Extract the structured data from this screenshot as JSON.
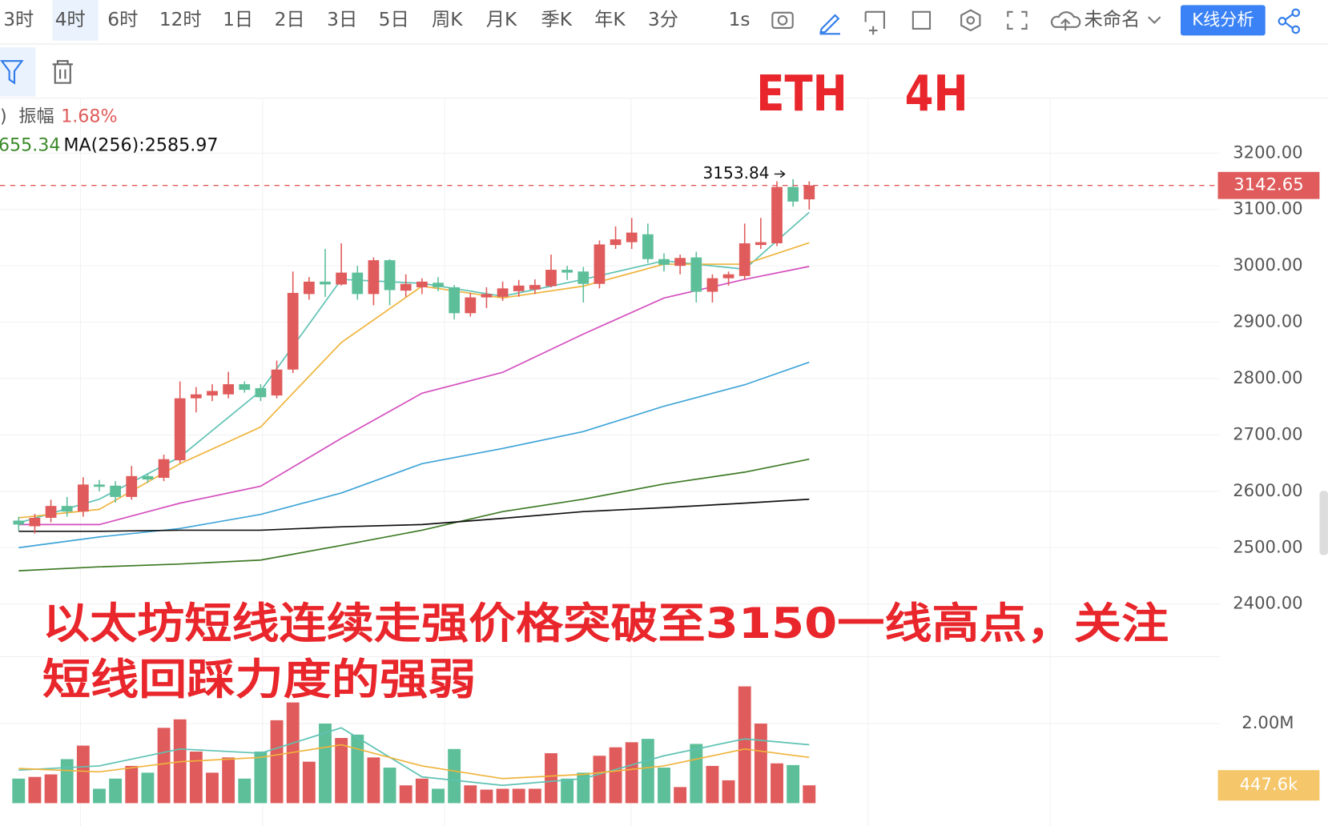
{
  "toolbar": {
    "periods": [
      "3时",
      "4时",
      "6时",
      "12时",
      "1日",
      "2日",
      "3日",
      "5日",
      "周K",
      "月K",
      "季K",
      "年K",
      "3分"
    ],
    "active": 1,
    "speed": "1s",
    "name": "未命名",
    "analysis": "K线分析"
  },
  "info": {
    "paren": ")",
    "amp_label": "振幅",
    "amp": "1.68%",
    "ma_cut": "655.34",
    "ma256": "MA(256):2585.97"
  },
  "overlay": {
    "title": "ETH    4H",
    "caption": [
      "以太坊短线连续走强价格突破至3150一线高点，关注",
      "短线回踩力度的强弱"
    ]
  },
  "chart_data": [
    {
      "type": "candlestick",
      "open": [
        2548,
        2538,
        2553,
        2574,
        2564,
        2612,
        2610,
        2590,
        2627,
        2624,
        2655,
        2765,
        2770,
        2772,
        2790,
        2783,
        2770,
        2816,
        2950,
        2972,
        2967,
        2988,
        2950,
        3010,
        2956,
        2962,
        2970,
        2962,
        2916,
        2944,
        2945,
        2955,
        2958,
        2964,
        2993,
        2990,
        2968,
        3037,
        3042,
        3056,
        3012,
        3000,
        3015,
        2954,
        2978,
        2982,
        3037,
        3040,
        3140,
        3118
      ],
      "high": [
        2555,
        2560,
        2585,
        2590,
        2625,
        2620,
        2618,
        2645,
        2632,
        2665,
        2795,
        2785,
        2790,
        2812,
        2795,
        2790,
        2832,
        2990,
        2980,
        3030,
        3040,
        3000,
        3015,
        3012,
        2985,
        2978,
        2980,
        2966,
        2952,
        2962,
        2972,
        2975,
        2976,
        3020,
        3000,
        2998,
        3045,
        3070,
        3085,
        3075,
        3022,
        3020,
        3025,
        2985,
        2990,
        3075,
        3085,
        3150,
        3153.84,
        3150
      ],
      "low": [
        2530,
        2525,
        2545,
        2555,
        2555,
        2600,
        2580,
        2585,
        2615,
        2618,
        2650,
        2740,
        2760,
        2765,
        2775,
        2760,
        2765,
        2810,
        2940,
        2945,
        2965,
        2940,
        2930,
        2930,
        2945,
        2950,
        2955,
        2905,
        2910,
        2925,
        2938,
        2945,
        2950,
        2962,
        2975,
        2935,
        2960,
        3030,
        3030,
        3005,
        2990,
        2985,
        2935,
        2935,
        2965,
        2975,
        3030,
        3035,
        3105,
        3100
      ],
      "close": [
        2541,
        2553,
        2574,
        2564,
        2612,
        2608,
        2590,
        2627,
        2621,
        2657,
        2765,
        2772,
        2778,
        2790,
        2780,
        2767,
        2816,
        2952,
        2972,
        2967,
        2988,
        2950,
        3010,
        2957,
        2968,
        2972,
        2962,
        2916,
        2944,
        2950,
        2960,
        2965,
        2966,
        2993,
        2988,
        2968,
        3038,
        3047,
        3059,
        3012,
        3002,
        3014,
        2954,
        2978,
        2985,
        3040,
        3042,
        3140,
        3114,
        3142.65
      ],
      "up_color": "#e05b5b",
      "down_color": "#5cbf99",
      "ylim": [
        2308,
        3299
      ],
      "yticks": [
        {
          "value": 2400,
          "label": "2400.00"
        },
        {
          "value": 2500,
          "label": "2500.00"
        },
        {
          "value": 2600,
          "label": "2600.00"
        },
        {
          "value": 2700,
          "label": "2700.00"
        },
        {
          "value": 2800,
          "label": "2800.00"
        },
        {
          "value": 2900,
          "label": "2900.00"
        },
        {
          "value": 3000,
          "label": "3000.00"
        },
        {
          "value": 3100,
          "label": "3100.00"
        },
        {
          "value": 3200,
          "label": "3200.00"
        }
      ],
      "grid": true,
      "line_x": [
        0,
        5,
        10,
        15,
        20,
        25,
        30,
        35,
        40,
        45,
        49
      ],
      "lines": [
        {
          "color": "#5ec2b4",
          "values": [
            2544,
            2586,
            2661,
            2778,
            2976,
            2969,
            2946,
            2976,
            3009,
            2994,
            3095
          ]
        },
        {
          "color": "#efb43c",
          "values": [
            2553,
            2568,
            2649,
            2714,
            2864,
            2964,
            2943,
            2964,
            3003,
            3003,
            3041
          ]
        },
        {
          "color": "#d44fbe",
          "values": [
            2541,
            2541,
            2579,
            2609,
            2694,
            2774,
            2811,
            2879,
            2943,
            2976,
            2999
          ]
        },
        {
          "color": "#3fa4d8",
          "values": [
            2500,
            2519,
            2534,
            2559,
            2597,
            2649,
            2676,
            2706,
            2751,
            2789,
            2829
          ]
        },
        {
          "color": "#3d7a25",
          "values": [
            2459,
            2466,
            2471,
            2478,
            2504,
            2531,
            2564,
            2586,
            2613,
            2634,
            2657
          ]
        },
        {
          "color": "#111111",
          "values": [
            2529,
            2529,
            2531,
            2531,
            2537,
            2541,
            2552,
            2564,
            2571,
            2579,
            2585.97
          ]
        }
      ]
    },
    {
      "type": "volume",
      "values": [
        617000,
        659000,
        723000,
        1106000,
        1446000,
        362000,
        617000,
        936000,
        766000,
        1893000,
        2106000,
        1297000,
        766000,
        1149000,
        617000,
        1297000,
        2084000,
        2531000,
        1042000,
        2000000,
        1638000,
        1723000,
        1149000,
        893000,
        447000,
        617000,
        362000,
        1361000,
        447000,
        340000,
        362000,
        362000,
        362000,
        1255000,
        617000,
        766000,
        1191000,
        1404000,
        1531000,
        1616000,
        893000,
        404000,
        1489000,
        936000,
        574000,
        2935000,
        2000000,
        1000000,
        957000,
        447600
      ],
      "last_value_label": "447.6k",
      "ylim": [
        0,
        3595000
      ],
      "yticks": [
        {
          "value": 2000000,
          "label": "2.00M"
        }
      ],
      "line_x": [
        0,
        5,
        10,
        15,
        20,
        25,
        30,
        35,
        40,
        45,
        49
      ],
      "lines": [
        {
          "color": "#5ec2b4",
          "values": [
            830000,
            936000,
            1361000,
            1255000,
            1893000,
            660000,
            447000,
            617000,
            1191000,
            1616000,
            1468000
          ]
        },
        {
          "color": "#efb43c",
          "values": [
            872000,
            787000,
            1042000,
            1149000,
            1468000,
            936000,
            617000,
            723000,
            936000,
            1361000,
            1149000
          ]
        }
      ]
    }
  ]
}
